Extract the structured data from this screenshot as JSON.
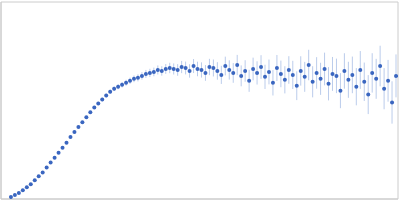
{
  "chart_data": {
    "type": "scatter",
    "color": "#3a66c0",
    "marker": "circle",
    "grid": true,
    "tick_labels": false,
    "xlim": [
      0,
      400
    ],
    "ylim": [
      0,
      200
    ],
    "xticks": [
      115
    ],
    "yticks": [
      100
    ],
    "x": [
      10,
      14,
      18,
      22,
      26,
      30,
      34,
      38,
      42,
      46,
      50,
      54,
      58,
      62,
      66,
      70,
      74,
      78,
      82,
      86,
      90,
      94,
      98,
      102,
      106,
      110,
      114,
      118,
      122,
      126,
      130,
      134,
      138,
      142,
      146,
      150,
      154,
      158,
      162,
      166,
      170,
      174,
      178,
      182,
      186,
      190,
      194,
      198,
      202,
      206,
      210,
      214,
      218,
      222,
      226,
      230,
      234,
      238,
      242,
      246,
      250,
      254,
      258,
      262,
      266,
      270,
      274,
      278,
      282,
      286,
      290,
      294,
      298,
      302,
      306,
      310,
      314,
      318,
      322,
      326,
      330,
      334,
      338,
      342,
      346,
      350,
      354,
      358,
      362,
      366,
      370,
      374,
      378,
      382,
      386,
      390,
      394,
      398
    ],
    "values": [
      2,
      4,
      6,
      9,
      12,
      15,
      19,
      23,
      27,
      32,
      37,
      42,
      47,
      52,
      57,
      63,
      68,
      73,
      78,
      83,
      88,
      93,
      97,
      101,
      105,
      109,
      112,
      114,
      116,
      118,
      120,
      122,
      123,
      125,
      127,
      128,
      129,
      131,
      130,
      132,
      133,
      132,
      131,
      134,
      133,
      130,
      135,
      132,
      131,
      128,
      134,
      133,
      130,
      126,
      135,
      131,
      128,
      136,
      125,
      130,
      120,
      132,
      128,
      134,
      124,
      129,
      118,
      133,
      127,
      121,
      131,
      126,
      115,
      130,
      124,
      136,
      119,
      128,
      122,
      132,
      117,
      127,
      125,
      110,
      130,
      121,
      126,
      114,
      131,
      119,
      106,
      128,
      122,
      135,
      112,
      120,
      98,
      125
    ],
    "errors": [
      0.3,
      0.3,
      0.4,
      0.4,
      0.5,
      0.5,
      0.5,
      0.6,
      0.6,
      0.7,
      0.7,
      0.8,
      0.8,
      0.9,
      0.9,
      1,
      1,
      1.1,
      1.2,
      1.3,
      1.4,
      1.5,
      1.7,
      1.9,
      2,
      2.2,
      2.4,
      2.6,
      2.8,
      3,
      3.2,
      3.4,
      3.6,
      3.8,
      4,
      4.2,
      4.4,
      4.6,
      4.8,
      5,
      5.3,
      5.6,
      5.9,
      6.2,
      6.5,
      6.8,
      7.1,
      7.4,
      7.7,
      8,
      8.3,
      8.6,
      8.9,
      9.2,
      9.5,
      9.8,
      10,
      10.3,
      10.6,
      10.9,
      11.2,
      11.5,
      11.8,
      12,
      12.3,
      12.6,
      12.9,
      13.2,
      13.5,
      13.8,
      14,
      14.3,
      14.6,
      14.9,
      15.2,
      15.5,
      15.8,
      16,
      16.3,
      16.6,
      16.9,
      17.2,
      17.5,
      17.8,
      18,
      18.3,
      18.6,
      18.9,
      19.2,
      19.5,
      19.8,
      20,
      20.3,
      20.6,
      20.9,
      21.2,
      21.5,
      21.8
    ]
  }
}
